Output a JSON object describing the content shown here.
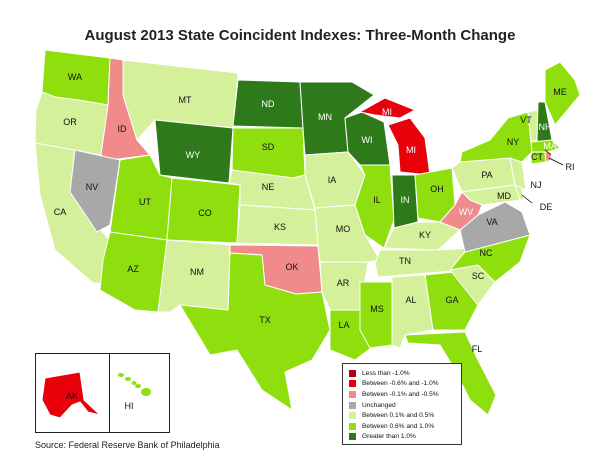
{
  "title": "August 2013 State Coincident Indexes: Three-Month Change",
  "source": "Source: Federal Reserve Bank of Philadelphia",
  "colors": {
    "lt_neg1": "#b3000e",
    "neg06_neg1": "#e8000b",
    "neg01_neg05": "#f18a8a",
    "unchanged": "#a8a8a8",
    "p01_05": "#d4f09a",
    "p06_1": "#8fdf0f",
    "gt1": "#2e7a1a"
  },
  "legend": [
    {
      "key": "lt_neg1",
      "label": "Less than -1.0%"
    },
    {
      "key": "neg06_neg1",
      "label": "Between -0.6% and -1.0%"
    },
    {
      "key": "neg01_neg05",
      "label": "Between -0.1% and -0.5%"
    },
    {
      "key": "unchanged",
      "label": "Unchanged"
    },
    {
      "key": "p01_05",
      "label": "Between 0.1% and 0.5%"
    },
    {
      "key": "p06_1",
      "label": "Between 0.6% and 1.0%"
    },
    {
      "key": "gt1",
      "label": "Greater than 1.0%"
    }
  ],
  "states": [
    {
      "id": "WA",
      "label": "WA",
      "cat": "p06_1"
    },
    {
      "id": "OR",
      "label": "OR",
      "cat": "p01_05"
    },
    {
      "id": "CA",
      "label": "CA",
      "cat": "p01_05"
    },
    {
      "id": "ID",
      "label": "ID",
      "cat": "neg01_neg05"
    },
    {
      "id": "NV",
      "label": "NV",
      "cat": "unchanged"
    },
    {
      "id": "MT",
      "label": "MT",
      "cat": "p01_05"
    },
    {
      "id": "WY",
      "label": "WY",
      "cat": "gt1"
    },
    {
      "id": "UT",
      "label": "UT",
      "cat": "p06_1"
    },
    {
      "id": "AZ",
      "label": "AZ",
      "cat": "p06_1"
    },
    {
      "id": "CO",
      "label": "CO",
      "cat": "p06_1"
    },
    {
      "id": "NM",
      "label": "NM",
      "cat": "p01_05"
    },
    {
      "id": "ND",
      "label": "ND",
      "cat": "gt1"
    },
    {
      "id": "SD",
      "label": "SD",
      "cat": "p06_1"
    },
    {
      "id": "NE",
      "label": "NE",
      "cat": "p01_05"
    },
    {
      "id": "KS",
      "label": "KS",
      "cat": "p01_05"
    },
    {
      "id": "OK",
      "label": "OK",
      "cat": "neg01_neg05"
    },
    {
      "id": "TX",
      "label": "TX",
      "cat": "p06_1"
    },
    {
      "id": "MN",
      "label": "MN",
      "cat": "gt1"
    },
    {
      "id": "IA",
      "label": "IA",
      "cat": "p01_05"
    },
    {
      "id": "MO",
      "label": "MO",
      "cat": "p01_05"
    },
    {
      "id": "AR",
      "label": "AR",
      "cat": "p01_05"
    },
    {
      "id": "LA",
      "label": "LA",
      "cat": "p06_1"
    },
    {
      "id": "WI",
      "label": "WI",
      "cat": "gt1"
    },
    {
      "id": "IL",
      "label": "IL",
      "cat": "p06_1"
    },
    {
      "id": "MS",
      "label": "MS",
      "cat": "p06_1"
    },
    {
      "id": "MI",
      "label": "MI",
      "cat": "neg06_neg1"
    },
    {
      "id": "IN",
      "label": "IN",
      "cat": "gt1"
    },
    {
      "id": "OH",
      "label": "OH",
      "cat": "p06_1"
    },
    {
      "id": "KY",
      "label": "KY",
      "cat": "p01_05"
    },
    {
      "id": "TN",
      "label": "TN",
      "cat": "p01_05"
    },
    {
      "id": "AL",
      "label": "AL",
      "cat": "p01_05"
    },
    {
      "id": "GA",
      "label": "GA",
      "cat": "p06_1"
    },
    {
      "id": "FL",
      "label": "FL",
      "cat": "p06_1"
    },
    {
      "id": "SC",
      "label": "SC",
      "cat": "p01_05"
    },
    {
      "id": "NC",
      "label": "NC",
      "cat": "p06_1"
    },
    {
      "id": "VA",
      "label": "VA",
      "cat": "unchanged"
    },
    {
      "id": "WV",
      "label": "WV",
      "cat": "neg01_neg05"
    },
    {
      "id": "PA",
      "label": "PA",
      "cat": "p01_05"
    },
    {
      "id": "NY",
      "label": "NY",
      "cat": "p06_1"
    },
    {
      "id": "VT",
      "label": "VT",
      "cat": "p01_05"
    },
    {
      "id": "NH",
      "label": "NH",
      "cat": "gt1"
    },
    {
      "id": "ME",
      "label": "ME",
      "cat": "p06_1"
    },
    {
      "id": "MA",
      "label": "MA",
      "cat": "p06_1"
    },
    {
      "id": "CT",
      "label": "CT",
      "cat": "p06_1"
    },
    {
      "id": "RI",
      "label": "RI",
      "cat": "neg01_neg05"
    },
    {
      "id": "NJ",
      "label": "NJ",
      "cat": "p01_05"
    },
    {
      "id": "DE",
      "label": "DE",
      "cat": "p01_05"
    },
    {
      "id": "MD",
      "label": "MD",
      "cat": "p01_05"
    },
    {
      "id": "AK",
      "label": "AK",
      "cat": "neg06_neg1"
    },
    {
      "id": "HI",
      "label": "HI",
      "cat": "p06_1"
    }
  ]
}
